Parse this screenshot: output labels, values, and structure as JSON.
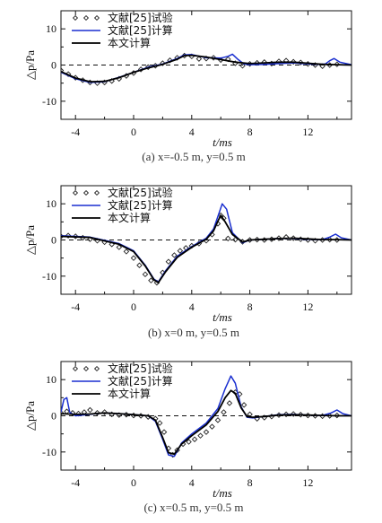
{
  "chart_data": [
    {
      "type": "line",
      "caption": "(a) x=-0.5 m, y=0.5 m",
      "xlabel": "t/ms",
      "ylabel": "△p/Pa",
      "xlim": [
        -5,
        15
      ],
      "ylim": [
        -15,
        15
      ],
      "xticks": [
        "-4",
        "0",
        "4",
        "8",
        "12"
      ],
      "yticks": [
        "10",
        "0",
        "-10"
      ],
      "reference_line": 0,
      "legend": [
        "文献[25]试验",
        "文献[25]计算",
        "本文计算"
      ],
      "series": [
        {
          "name": "文献[25]试验",
          "style": "markers",
          "color": "#222222",
          "x": [
            -5.0,
            -4.5,
            -4.0,
            -3.5,
            -3.0,
            -2.5,
            -2.0,
            -1.5,
            -1.0,
            -0.5,
            0.0,
            0.5,
            1.0,
            1.5,
            2.0,
            2.5,
            3.0,
            3.5,
            4.0,
            4.5,
            5.0,
            5.5,
            6.0,
            6.5,
            7.0,
            7.5,
            8.0,
            8.5,
            9.0,
            9.5,
            10.0,
            10.5,
            11.0,
            11.5,
            12.0,
            12.5,
            13.0,
            13.5,
            14.0
          ],
          "y": [
            -1.5,
            -2.5,
            -3.5,
            -4.2,
            -4.8,
            -5.0,
            -4.8,
            -4.4,
            -3.8,
            -3.0,
            -2.2,
            -1.2,
            -0.6,
            -0.2,
            0.5,
            1.3,
            2.0,
            2.6,
            2.4,
            1.7,
            1.8,
            2.0,
            1.4,
            1.6,
            0.5,
            -0.2,
            0.3,
            0.6,
            0.8,
            0.4,
            1.0,
            1.2,
            0.9,
            0.7,
            0.3,
            0.0,
            -0.3,
            0.0,
            0.2
          ]
        },
        {
          "name": "文献[25]计算",
          "style": "line",
          "color": "#1a2fd0",
          "x": [
            -5.0,
            -4.0,
            -3.0,
            -2.0,
            -1.0,
            0.0,
            1.0,
            2.0,
            3.0,
            3.5,
            4.0,
            5.0,
            6.0,
            6.5,
            6.8,
            7.2,
            7.6,
            8.0,
            9.0,
            10.0,
            11.0,
            12.0,
            12.8,
            13.2,
            13.5,
            13.8,
            14.2,
            15.0
          ],
          "y": [
            -2.0,
            -3.8,
            -4.8,
            -4.6,
            -3.4,
            -2.0,
            -0.6,
            0.3,
            1.8,
            2.8,
            2.9,
            2.0,
            1.9,
            2.4,
            3.0,
            1.5,
            0.3,
            0.1,
            0.2,
            0.4,
            0.6,
            0.3,
            0.2,
            0.3,
            1.2,
            1.8,
            0.8,
            0.1
          ]
        },
        {
          "name": "本文计算",
          "style": "line",
          "color": "#000000",
          "x": [
            -5.0,
            -4.0,
            -3.0,
            -2.0,
            -1.0,
            0.0,
            1.0,
            2.0,
            3.0,
            3.5,
            4.0,
            5.0,
            6.0,
            7.0,
            8.0,
            9.0,
            10.0,
            11.0,
            12.0,
            13.0,
            14.0,
            15.0
          ],
          "y": [
            -1.8,
            -3.6,
            -4.6,
            -4.5,
            -3.5,
            -2.0,
            -0.8,
            0.2,
            1.6,
            2.6,
            2.7,
            2.2,
            1.5,
            0.8,
            0.4,
            0.6,
            0.8,
            0.8,
            0.5,
            0.2,
            0.1,
            0.0
          ]
        }
      ]
    },
    {
      "type": "line",
      "caption": "(b) x=0 m, y=0.5 m",
      "xlabel": "t/ms",
      "ylabel": "△p/Pa",
      "xlim": [
        -5,
        15
      ],
      "ylim": [
        -15,
        15
      ],
      "xticks": [
        "-4",
        "0",
        "4",
        "8",
        "12"
      ],
      "yticks": [
        "10",
        "0",
        "-10"
      ],
      "reference_line": 0,
      "legend": [
        "文献[25]试验",
        "文献[25]计算",
        "本文计算"
      ],
      "series": [
        {
          "name": "文献[25]试验",
          "style": "markers",
          "color": "#222222",
          "x": [
            -5.0,
            -4.5,
            -4.0,
            -3.5,
            -3.0,
            -2.5,
            -2.0,
            -1.5,
            -1.0,
            -0.5,
            0.0,
            0.4,
            0.8,
            1.2,
            1.6,
            2.0,
            2.4,
            2.8,
            3.2,
            3.6,
            4.0,
            4.5,
            5.0,
            5.4,
            5.8,
            6.0,
            6.2,
            6.5,
            7.0,
            7.5,
            8.0,
            8.5,
            9.0,
            9.5,
            10.0,
            10.5,
            11.0,
            11.5,
            12.0,
            12.5,
            13.0,
            13.5,
            14.0
          ],
          "y": [
            1.0,
            1.2,
            1.0,
            0.6,
            0.2,
            -0.2,
            -0.6,
            -1.2,
            -2.0,
            -3.2,
            -5.0,
            -7.0,
            -9.5,
            -11.2,
            -11.8,
            -9.0,
            -6.0,
            -4.2,
            -3.0,
            -2.2,
            -1.6,
            -1.0,
            -0.2,
            1.5,
            4.5,
            6.8,
            6.0,
            0.4,
            0.1,
            -0.5,
            0.0,
            0.1,
            0.0,
            0.2,
            0.5,
            0.8,
            0.5,
            0.2,
            0.0,
            -0.2,
            0.0,
            0.1,
            0.0
          ]
        },
        {
          "name": "文献[25]计算",
          "style": "line",
          "color": "#1a2fd0",
          "x": [
            -5.0,
            -3.0,
            -1.0,
            0.0,
            0.8,
            1.4,
            1.7,
            2.2,
            3.0,
            4.0,
            5.0,
            5.5,
            5.8,
            6.1,
            6.4,
            6.8,
            7.5,
            8.0,
            9.0,
            10.0,
            11.0,
            12.0,
            13.0,
            13.5,
            13.9,
            14.3,
            15.0
          ],
          "y": [
            1.2,
            0.8,
            -1.0,
            -3.0,
            -7.0,
            -10.8,
            -11.6,
            -8.5,
            -4.5,
            -1.8,
            0.5,
            3.0,
            6.5,
            10.0,
            8.5,
            2.0,
            -0.8,
            0.0,
            0.2,
            0.4,
            0.4,
            0.2,
            0.1,
            0.8,
            1.6,
            0.6,
            0.0
          ]
        },
        {
          "name": "本文计算",
          "style": "line",
          "color": "#000000",
          "x": [
            -5.0,
            -3.0,
            -1.0,
            0.0,
            0.8,
            1.4,
            1.7,
            2.2,
            3.0,
            4.0,
            5.0,
            5.5,
            5.8,
            6.0,
            6.3,
            6.8,
            7.5,
            8.0,
            9.0,
            10.0,
            11.0,
            12.0,
            13.0,
            14.0,
            15.0
          ],
          "y": [
            1.0,
            0.7,
            -1.2,
            -3.2,
            -7.2,
            -11.0,
            -11.8,
            -8.8,
            -4.8,
            -2.0,
            0.2,
            2.5,
            5.2,
            6.8,
            5.0,
            1.5,
            -0.6,
            0.0,
            0.2,
            0.4,
            0.5,
            0.3,
            0.1,
            0.1,
            0.0
          ]
        }
      ]
    },
    {
      "type": "line",
      "caption": "(c) x=0.5 m, y=0.5 m",
      "xlabel": "t/ms",
      "ylabel": "△p/Pa",
      "xlim": [
        -5,
        15
      ],
      "ylim": [
        -15,
        15
      ],
      "xticks": [
        "-4",
        "0",
        "4",
        "8",
        "12"
      ],
      "yticks": [
        "10",
        "0",
        "-10"
      ],
      "reference_line": 0,
      "legend": [
        "文献[25]试验",
        "文献[25]计算",
        "本文计算"
      ],
      "series": [
        {
          "name": "文献[25]试验",
          "style": "markers",
          "color": "#222222",
          "x": [
            -5.0,
            -4.6,
            -4.2,
            -3.8,
            -3.4,
            -3.0,
            -2.5,
            -2.0,
            -1.5,
            -1.0,
            -0.5,
            0.0,
            0.5,
            1.0,
            1.5,
            1.8,
            2.1,
            2.4,
            2.7,
            3.0,
            3.4,
            3.8,
            4.2,
            4.6,
            5.0,
            5.4,
            5.8,
            6.2,
            6.6,
            7.0,
            7.3,
            7.6,
            8.0,
            8.5,
            9.0,
            9.5,
            10.0,
            10.5,
            11.0,
            11.5,
            12.0,
            12.5,
            13.0,
            13.5,
            14.0
          ],
          "y": [
            0.8,
            1.2,
            0.8,
            0.6,
            1.0,
            1.6,
            0.8,
            1.0,
            0.4,
            0.2,
            0.3,
            0.1,
            0.0,
            -0.3,
            -0.8,
            -2.0,
            -4.5,
            -9.0,
            -10.8,
            -9.5,
            -7.8,
            -7.2,
            -6.5,
            -5.5,
            -4.5,
            -3.0,
            -1.2,
            1.0,
            3.5,
            6.5,
            6.0,
            3.0,
            0.4,
            -0.8,
            -0.5,
            -0.2,
            0.2,
            0.4,
            0.5,
            0.3,
            0.1,
            0.0,
            -0.1,
            0.0,
            0.1
          ]
        },
        {
          "name": "文献[25]计算",
          "style": "line",
          "color": "#1a2fd0",
          "x": [
            -5.0,
            -4.8,
            -4.6,
            -4.4,
            -4.0,
            -3.0,
            -2.0,
            -1.0,
            0.0,
            1.0,
            1.5,
            2.0,
            2.4,
            2.8,
            3.3,
            4.0,
            5.0,
            5.8,
            6.3,
            6.7,
            7.0,
            7.4,
            7.8,
            8.2,
            9.0,
            10.0,
            11.0,
            12.0,
            13.0,
            13.6,
            14.0,
            14.4,
            15.0
          ],
          "y": [
            1.0,
            4.5,
            5.0,
            1.0,
            0.0,
            0.4,
            0.8,
            0.6,
            0.3,
            0.0,
            -1.5,
            -6.5,
            -10.8,
            -11.2,
            -7.5,
            -5.0,
            -2.0,
            2.0,
            7.5,
            11.0,
            9.0,
            2.5,
            -0.4,
            -0.6,
            -0.2,
            0.3,
            0.4,
            0.2,
            0.1,
            0.8,
            1.6,
            0.6,
            0.0
          ]
        },
        {
          "name": "本文计算",
          "style": "line",
          "color": "#000000",
          "x": [
            -5.0,
            -4.0,
            -3.0,
            -2.0,
            -1.0,
            0.0,
            1.0,
            1.5,
            2.0,
            2.4,
            2.8,
            3.3,
            4.0,
            5.0,
            5.8,
            6.3,
            6.7,
            7.0,
            7.4,
            7.8,
            8.2,
            9.0,
            10.0,
            11.0,
            12.0,
            13.0,
            14.0,
            15.0
          ],
          "y": [
            0.6,
            0.4,
            0.5,
            0.8,
            0.6,
            0.3,
            0.0,
            -1.2,
            -6.0,
            -10.2,
            -10.6,
            -7.8,
            -5.5,
            -2.5,
            1.2,
            5.0,
            7.0,
            6.2,
            2.2,
            -0.2,
            -0.4,
            -0.2,
            0.2,
            0.3,
            0.2,
            0.1,
            0.0,
            0.0
          ]
        }
      ]
    }
  ]
}
